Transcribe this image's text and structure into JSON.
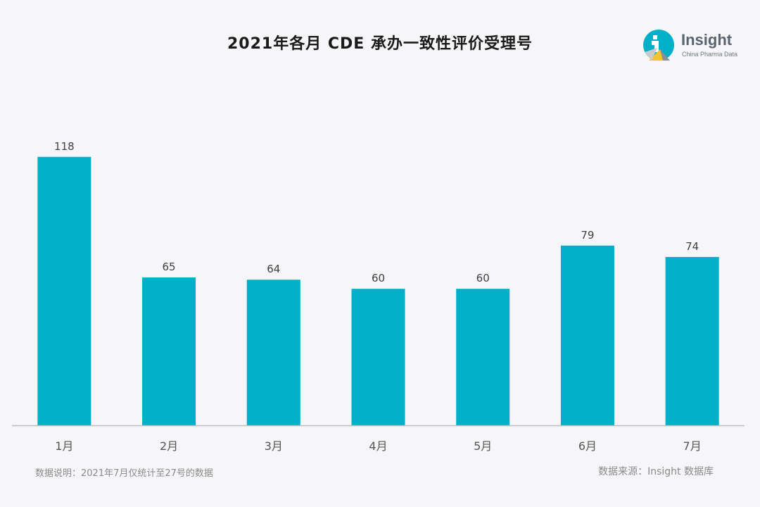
{
  "chart_data": {
    "type": "bar",
    "title": "2021年各月 CDE 承办一致性评价受理号",
    "categories": [
      "1月",
      "2月",
      "3月",
      "4月",
      "5月",
      "6月",
      "7月"
    ],
    "values": [
      118,
      65,
      64,
      60,
      60,
      79,
      74
    ],
    "ylim": [
      0,
      130
    ],
    "grid": false,
    "bar_color": "#00b0c8",
    "axis_color": "#bdbdbd"
  },
  "logo": {
    "word": "Insight",
    "sub": "China Pharma Data",
    "colors": [
      "#00b0c8",
      "#f4c430",
      "#8a9096"
    ]
  },
  "footnote": "数据说明：2021年7月仅统计至27号的数据",
  "source": "数据来源：Insight 数据库"
}
